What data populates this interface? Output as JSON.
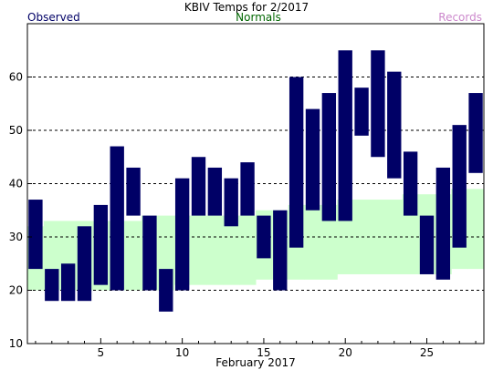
{
  "chart_data": {
    "type": "bar",
    "title": "KBIV Temps for 2/2017",
    "xlabel": "February 2017",
    "ylabel": "",
    "ylim": [
      10,
      70
    ],
    "xlim": [
      0.5,
      28.5
    ],
    "grid": "horizontal dashed",
    "yticks": [
      10,
      20,
      30,
      40,
      50,
      60
    ],
    "xticks": [
      5,
      10,
      15,
      20,
      25
    ],
    "legend": [
      {
        "name": "Observed",
        "color": "#000066",
        "position": "top-left"
      },
      {
        "name": "Normals",
        "color": "#006600",
        "position": "top-center"
      },
      {
        "name": "Records",
        "color": "#cc88cc",
        "position": "top-right"
      }
    ],
    "normals": {
      "color": "#ccffcc",
      "days": [
        1,
        2,
        3,
        4,
        5,
        6,
        7,
        8,
        9,
        10,
        11,
        12,
        13,
        14,
        15,
        16,
        17,
        18,
        19,
        20,
        21,
        22,
        23,
        24,
        25,
        26,
        27,
        28
      ],
      "low": [
        20,
        20,
        20,
        20,
        20,
        20,
        20,
        20,
        20,
        21,
        21,
        21,
        21,
        21,
        22,
        22,
        22,
        22,
        22,
        23,
        23,
        23,
        23,
        23,
        23,
        23,
        24,
        24
      ],
      "high": [
        32,
        33,
        33,
        33,
        33,
        33,
        33,
        34,
        34,
        34,
        34,
        34,
        34,
        34,
        35,
        35,
        36,
        36,
        36,
        37,
        37,
        37,
        37,
        38,
        38,
        38,
        39,
        39
      ]
    },
    "series": [
      {
        "name": "Observed",
        "color": "#000066",
        "days": [
          1,
          2,
          3,
          4,
          5,
          6,
          7,
          8,
          9,
          10,
          11,
          12,
          13,
          14,
          15,
          16,
          17,
          18,
          19,
          20,
          21,
          22,
          23,
          24,
          25,
          26,
          27,
          28
        ],
        "low": [
          24,
          18,
          18,
          18,
          21,
          20,
          34,
          20,
          16,
          20,
          34,
          34,
          32,
          34,
          26,
          20,
          28,
          35,
          33,
          33,
          49,
          45,
          41,
          34,
          23,
          22,
          28,
          42
        ],
        "high": [
          37,
          24,
          25,
          32,
          36,
          47,
          43,
          34,
          24,
          41,
          45,
          43,
          41,
          44,
          34,
          35,
          60,
          54,
          57,
          65,
          58,
          65,
          61,
          46,
          34,
          43,
          51,
          57
        ]
      }
    ]
  }
}
